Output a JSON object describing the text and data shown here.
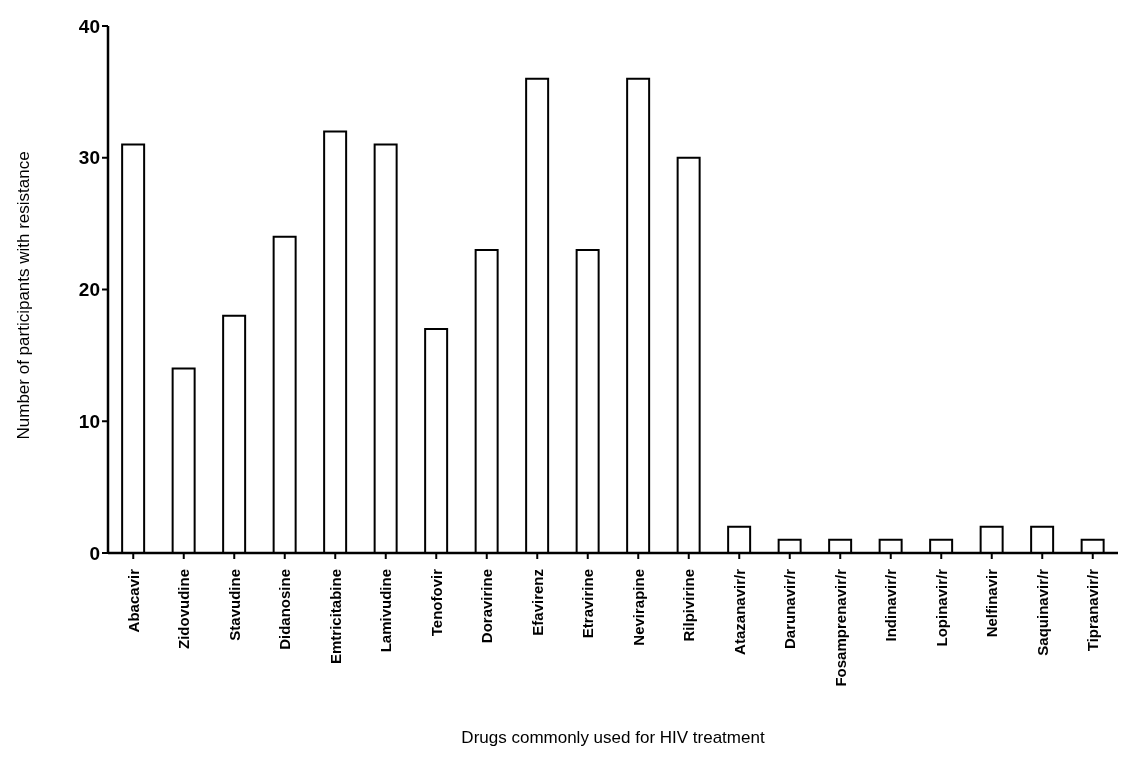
{
  "chart_data": {
    "type": "bar",
    "xlabel": "Drugs commonly used for HIV treatment",
    "ylabel": "Number of participants with resistance",
    "categories": [
      "Abacavir",
      "Zidovudine",
      "Stavudine",
      "Didanosine",
      "Emtricitabine",
      "Lamivudine",
      "Tenofovir",
      "Doravirine",
      "Efavirenz",
      "Etravirine",
      "Nevirapine",
      "Rilpivirine",
      "Atazanavir/r",
      "Darunavir/r",
      "Fosamprenavir/r",
      "Indinavir/r",
      "Lopinavir/r",
      "Nelfinavir",
      "Saquinavir/r",
      "Tipranavir/r"
    ],
    "values": [
      31,
      14,
      18,
      24,
      32,
      31,
      17,
      23,
      36,
      23,
      36,
      30,
      2,
      1,
      1,
      1,
      1,
      2,
      2,
      1
    ],
    "color": "#ffffff",
    "ylim": [
      0,
      40
    ],
    "yticks": [
      0,
      10,
      20,
      30,
      40
    ],
    "grid": false,
    "legend": false
  }
}
